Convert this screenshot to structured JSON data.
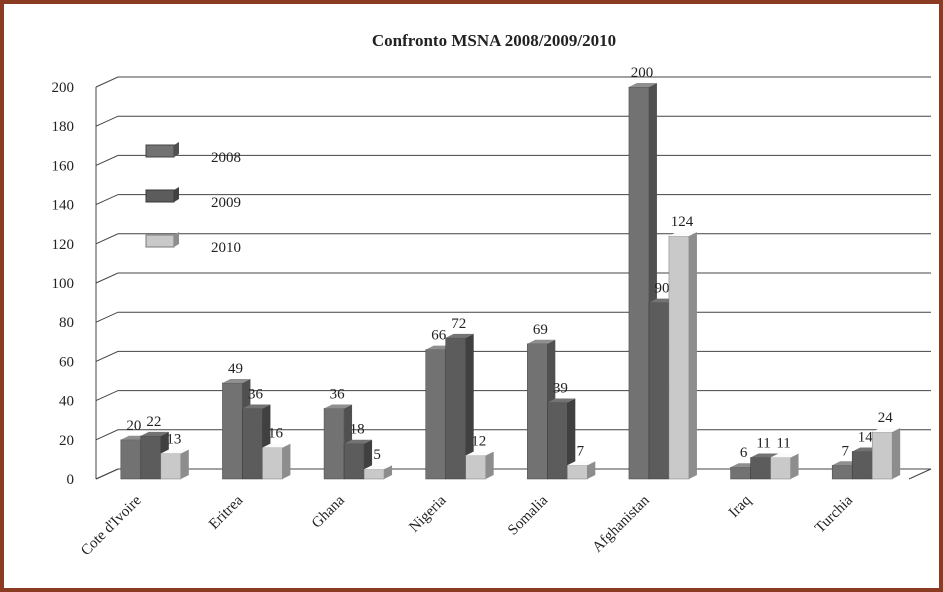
{
  "chart_data": {
    "type": "bar3d",
    "title": "Confronto MSNA 2008/2009/2010",
    "categories": [
      "Cote d'Ivoire",
      "Eritrea",
      "Ghana",
      "Nigeria",
      "Somalia",
      "Afghanistan",
      "Iraq",
      "Turchia"
    ],
    "series": [
      {
        "name": "2008",
        "color": "#727272",
        "values": [
          20,
          49,
          36,
          66,
          69,
          200,
          6,
          7
        ]
      },
      {
        "name": "2009",
        "color": "#5c5c5c",
        "values": [
          22,
          36,
          18,
          72,
          39,
          90,
          11,
          14
        ]
      },
      {
        "name": "2010",
        "color": "#c9c9c9",
        "values": [
          13,
          16,
          5,
          12,
          7,
          124,
          11,
          24
        ]
      }
    ],
    "ylim": [
      0,
      200
    ],
    "yticks": [
      0,
      20,
      40,
      60,
      80,
      100,
      120,
      140,
      160,
      180,
      200
    ],
    "grid": true
  }
}
